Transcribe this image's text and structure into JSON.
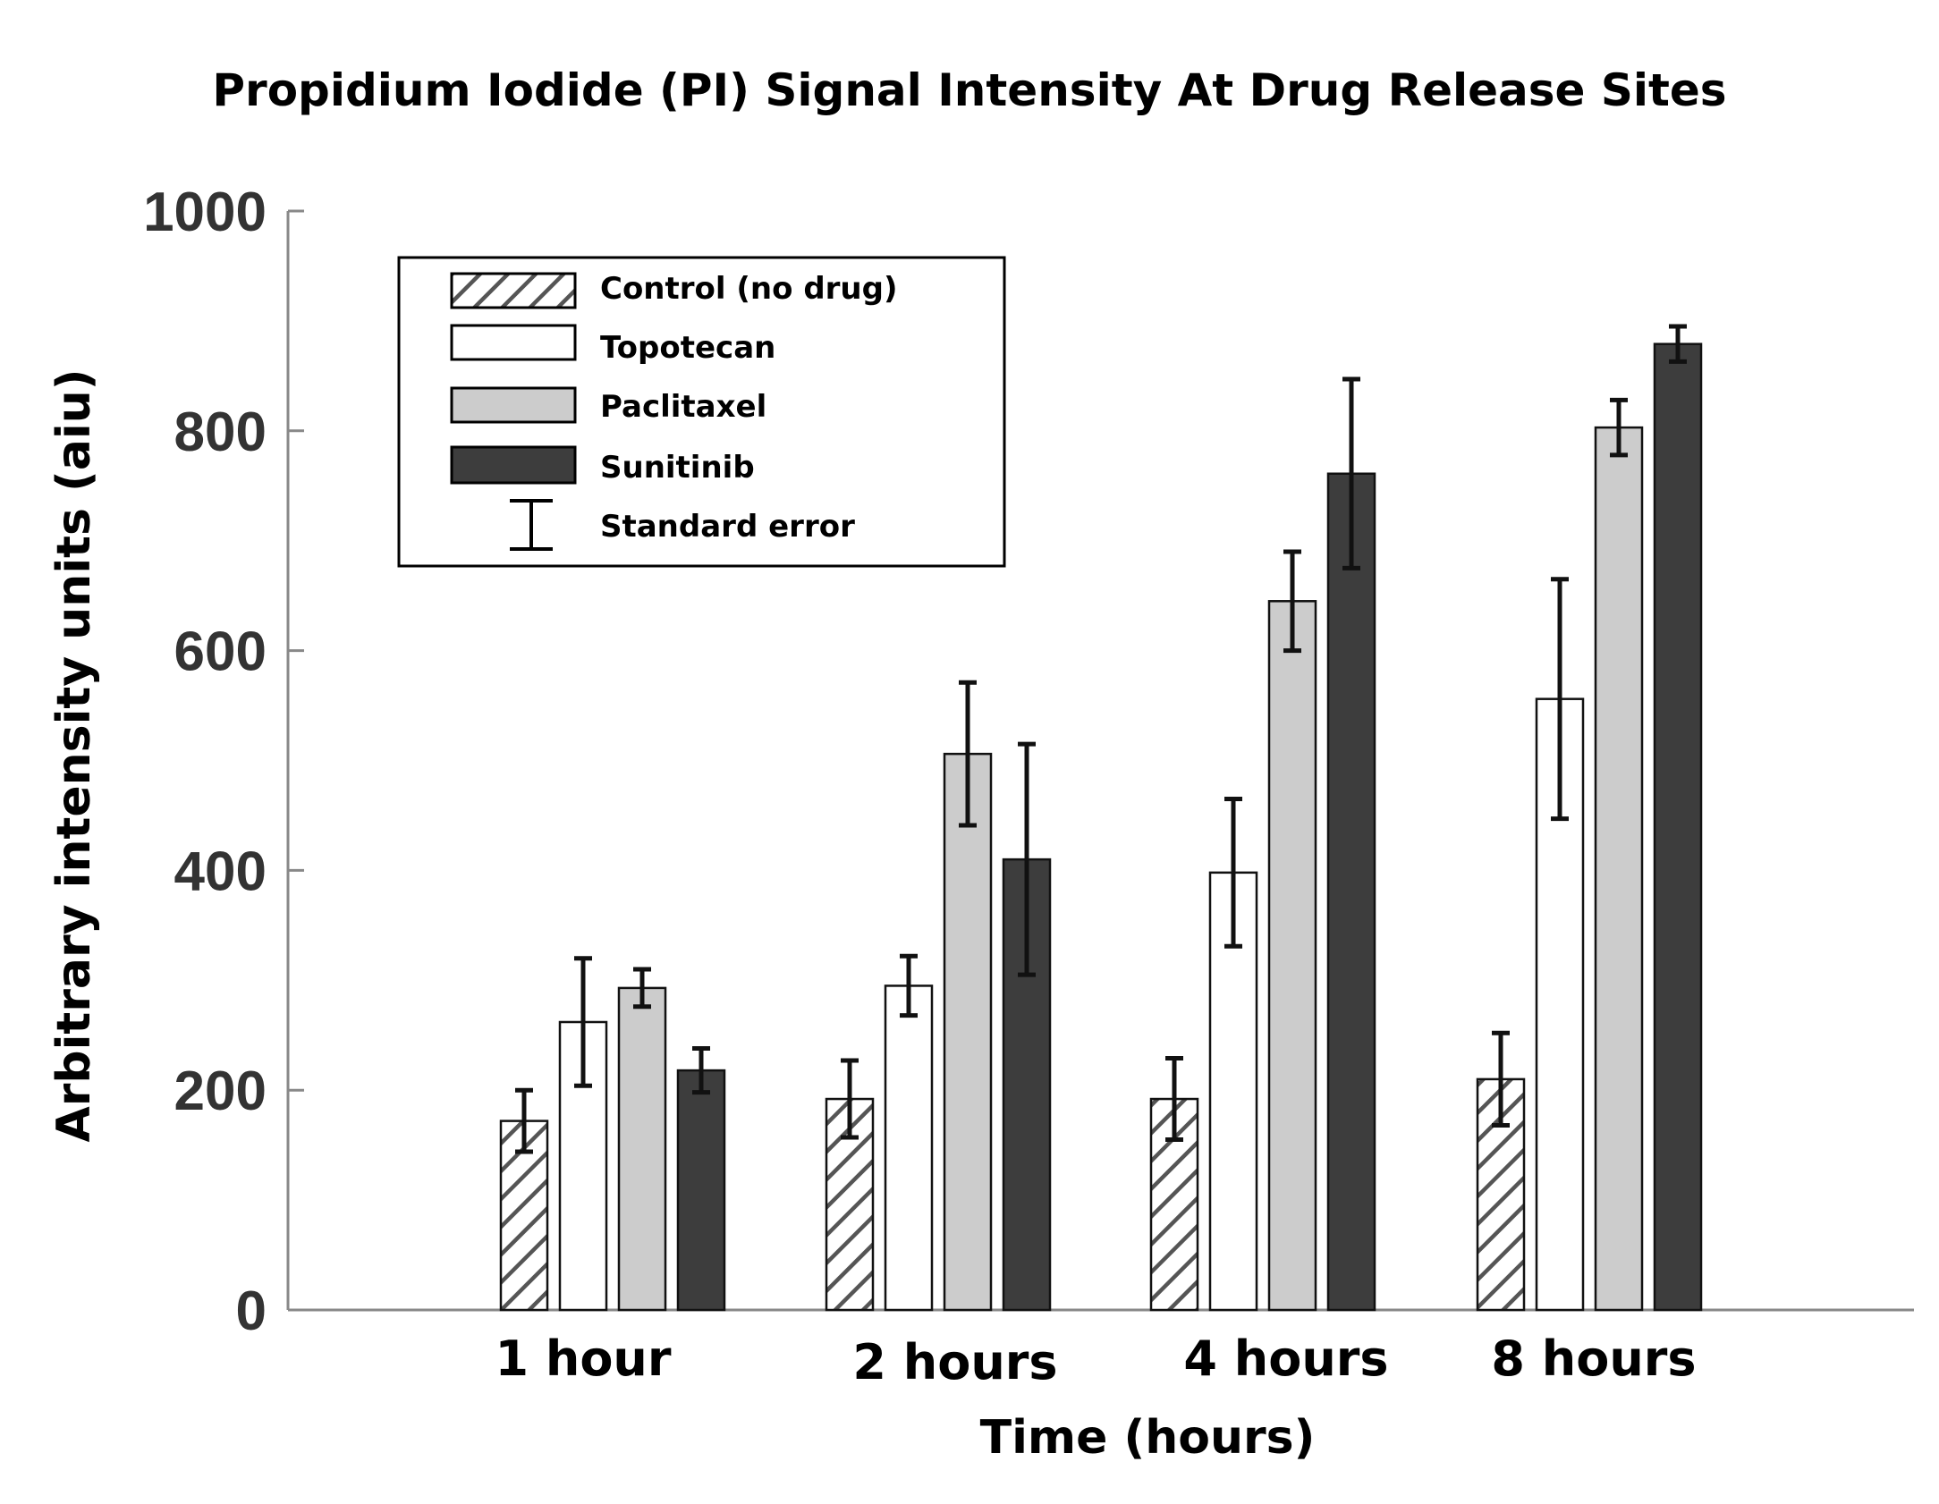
{
  "chart_data": {
    "type": "bar",
    "title": "Propidium Iodide (PI) Signal Intensity At Drug Release Sites",
    "xlabel": "Time (hours)",
    "ylabel": "Arbitrary intensity units (aiu)",
    "ylim": [
      0,
      1000
    ],
    "yticks": [
      0,
      200,
      400,
      600,
      800,
      1000
    ],
    "categories": [
      "1 hour",
      "2 hours",
      "4 hours",
      "8 hours"
    ],
    "grid": false,
    "legend_position": "top-left",
    "series": [
      {
        "name": "Control (no drug)",
        "fill": "hatched",
        "values": [
          172,
          192,
          192,
          210
        ],
        "errors": [
          28,
          35,
          37,
          42
        ]
      },
      {
        "name": "Topotecan",
        "fill": "white",
        "values": [
          262,
          295,
          398,
          556
        ],
        "errors": [
          58,
          27,
          67,
          109
        ]
      },
      {
        "name": "Paclitaxel",
        "fill": "light-gray",
        "values": [
          293,
          506,
          645,
          803
        ],
        "errors": [
          17,
          65,
          45,
          25
        ]
      },
      {
        "name": "Sunitinib",
        "fill": "dark-gray",
        "values": [
          218,
          410,
          761,
          879
        ],
        "errors": [
          20,
          105,
          86,
          16
        ]
      }
    ],
    "legend_error_label": "Standard error"
  },
  "colors": {
    "hatch_stroke": "#555555",
    "white_bar": "#ffffff",
    "light_bar": "#cccccc",
    "dark_bar": "#3d3d3d",
    "axis": "#888888"
  }
}
